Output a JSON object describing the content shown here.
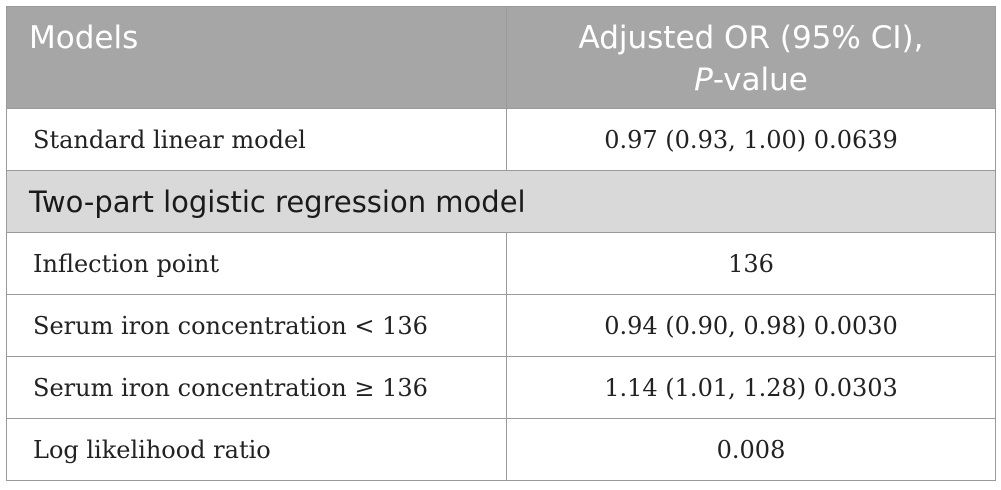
{
  "table": {
    "header": {
      "col1": "Models",
      "col2_line1": "Adjusted OR (95% CI),",
      "col2_line2_italic": "P",
      "col2_line2_rest": "-value"
    },
    "rows": [
      {
        "label": "Standard linear model",
        "value": "0.97 (0.93, 1.00) 0.0639"
      }
    ],
    "section": {
      "label": "Two-part logistic regression model"
    },
    "section_rows": [
      {
        "label": "Inflection point",
        "value": "136"
      },
      {
        "label": "Serum iron concentration < 136",
        "value": "0.94 (0.90, 0.98) 0.0030"
      },
      {
        "label": "Serum iron concentration ≥ 136",
        "value": "1.14 (1.01, 1.28) 0.0303"
      },
      {
        "label": "Log likelihood ratio",
        "value": "0.008"
      }
    ]
  }
}
